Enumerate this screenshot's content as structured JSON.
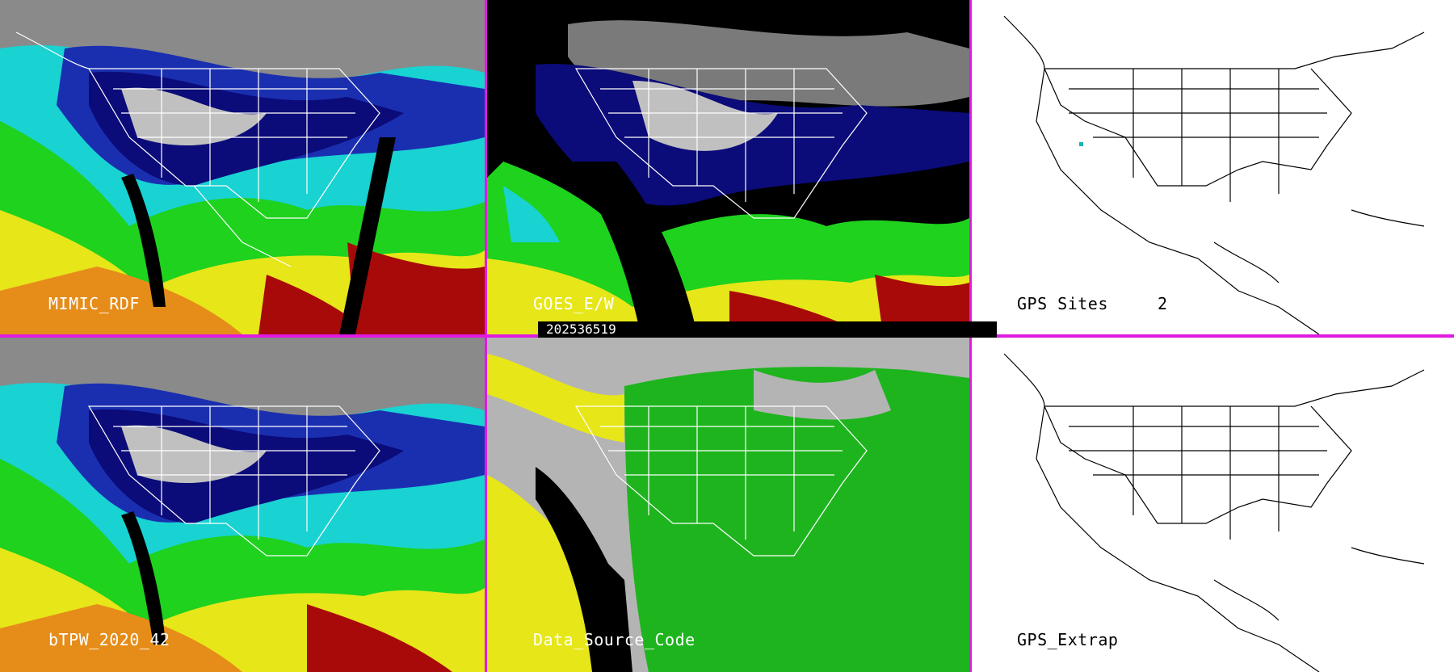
{
  "panels": [
    {
      "id": "mimic-rdf",
      "label": "MIMIC_RDF",
      "theme": "tpw"
    },
    {
      "id": "goes-ew",
      "label": "GOES_E/W",
      "theme": "goes"
    },
    {
      "id": "gps-sites",
      "label": "GPS Sites",
      "count": "2",
      "theme": "white"
    },
    {
      "id": "btpw",
      "label": "bTPW_2020_42",
      "theme": "tpw"
    },
    {
      "id": "data-source-code",
      "label": "Data_Source_Code",
      "theme": "source"
    },
    {
      "id": "gps-extrap",
      "label": "GPS_Extrap",
      "theme": "white"
    }
  ],
  "timestamp": "202536519",
  "colors": {
    "divider": "#e01ae0",
    "tpw_scale": [
      "#7a7a7a",
      "#c8c8c8",
      "#0a0a8a",
      "#1e3cc8",
      "#19d2d2",
      "#1ed21e",
      "#e6e619",
      "#e68c19",
      "#a80a0a"
    ],
    "source_scale": {
      "gray": "#b4b4b4",
      "yellow": "#e6e619",
      "green": "#1eb41e",
      "black": "#000000"
    },
    "gps_site": "#19b4b4"
  }
}
